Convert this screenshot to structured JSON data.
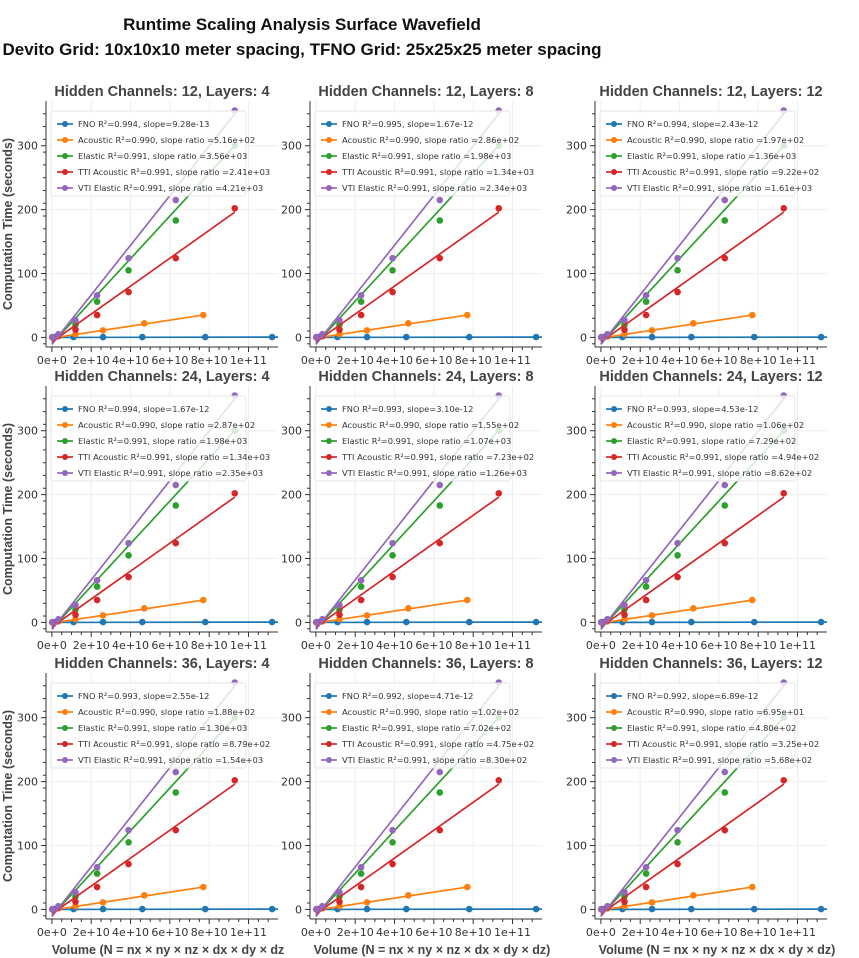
{
  "figure": {
    "title_line1": "Runtime Scaling Analysis Surface Wavefield",
    "title_line2": "Devito Grid: 10x10x10 meter spacing, TFNO Grid: 25x25x25 meter spacing",
    "ylabel": "Computation Time (seconds)",
    "xlabel_full": "Volume (N = nx × ny × nz × dx × dy × dz)",
    "xlabel_clipped": "Volume (N = nx × ny × nz × dx × dy × dz"
  },
  "colors": {
    "FNO": "#1f77b4",
    "Acoustic": "#ff7f0e",
    "Elastic": "#2ca02c",
    "TTI Acoustic": "#d62728",
    "VTI Elastic": "#9467bd"
  },
  "chart_data": {
    "type": "scatter",
    "xlim": [
      -3000000000,
      115000000000
    ],
    "ylim": [
      -15,
      370
    ],
    "xticks": [
      0,
      20000000000,
      40000000000,
      60000000000,
      80000000000,
      100000000000
    ],
    "xtick_labels": [
      "0e+0",
      "2e+10",
      "4e+10",
      "6e+10",
      "8e+10",
      "1e+11"
    ],
    "yticks": [
      0,
      100,
      200,
      300
    ],
    "ytick_labels": [
      "0",
      "100",
      "200",
      "300"
    ],
    "grid": true,
    "legend_position": "upper-left",
    "series_points": {
      "FNO": {
        "x": [
          1000000000,
          11000000000,
          26000000000,
          46000000000,
          78000000000,
          112000000000
        ],
        "y": [
          0.5,
          0.5,
          0.5,
          0.5,
          0.5,
          0.5
        ]
      },
      "Acoustic": {
        "x": [
          200000000,
          3300000000,
          12000000000,
          26000000000,
          47000000000,
          77000000000
        ],
        "y": [
          0.1,
          1.5,
          5,
          11,
          22,
          35
        ]
      },
      "Elastic": {
        "x": [
          200000000,
          3300000000,
          12000000000,
          23000000000,
          39000000000,
          63000000000,
          93000000000
        ],
        "y": [
          0.3,
          4,
          20,
          56,
          105,
          183,
          300
        ]
      },
      "TTI Acoustic": {
        "x": [
          200000000,
          3300000000,
          12000000000,
          23000000000,
          39000000000,
          63000000000,
          93000000000
        ],
        "y": [
          0.2,
          3,
          12,
          35,
          71,
          124,
          202
        ]
      },
      "VTI Elastic": {
        "x": [
          200000000,
          3300000000,
          12000000000,
          23000000000,
          39000000000,
          63000000000,
          93000000000
        ],
        "y": [
          0.3,
          5,
          27,
          66,
          124,
          215,
          355
        ]
      }
    },
    "series_fits": {
      "FNO": {
        "x": [
          0,
          115000000000
        ],
        "y": [
          0,
          0.5
        ]
      },
      "Acoustic": {
        "x": [
          0,
          77000000000
        ],
        "y": [
          -1,
          35
        ]
      },
      "Elastic": {
        "x": [
          0,
          93000000000
        ],
        "y": [
          -10,
          300
        ]
      },
      "TTI Acoustic": {
        "x": [
          0,
          93000000000
        ],
        "y": [
          -7,
          196
        ]
      },
      "VTI Elastic": {
        "x": [
          0,
          93000000000
        ],
        "y": [
          -11,
          350
        ]
      }
    },
    "panels": [
      {
        "title": "Hidden Channels: 12, Layers: 4",
        "legend": [
          "FNO R²=0.994, slope=9.28e-13",
          "Acoustic R²=0.990, slope ratio =5.16e+02",
          "Elastic R²=0.991, slope ratio =3.56e+03",
          "TTI Acoustic R²=0.991, slope ratio =2.41e+03",
          "VTI Elastic R²=0.991, slope ratio =4.21e+03"
        ]
      },
      {
        "title": "Hidden Channels: 12, Layers: 8",
        "legend": [
          "FNO R²=0.995, slope=1.67e-12",
          "Acoustic R²=0.990, slope ratio =2.86e+02",
          "Elastic R²=0.991, slope ratio =1.98e+03",
          "TTI Acoustic R²=0.991, slope ratio =1.34e+03",
          "VTI Elastic R²=0.991, slope ratio =2.34e+03"
        ]
      },
      {
        "title": "Hidden Channels: 12, Layers: 12",
        "legend": [
          "FNO R²=0.994, slope=2.43e-12",
          "Acoustic R²=0.990, slope ratio =1.97e+02",
          "Elastic R²=0.991, slope ratio =1.36e+03",
          "TTI Acoustic R²=0.991, slope ratio =9.22e+02",
          "VTI Elastic R²=0.991, slope ratio =1.61e+03"
        ]
      },
      {
        "title": "Hidden Channels: 24, Layers: 4",
        "legend": [
          "FNO R²=0.994, slope=1.67e-12",
          "Acoustic R²=0.990, slope ratio =2.87e+02",
          "Elastic R²=0.991, slope ratio =1.98e+03",
          "TTI Acoustic R²=0.991, slope ratio =1.34e+03",
          "VTI Elastic R²=0.991, slope ratio =2.35e+03"
        ]
      },
      {
        "title": "Hidden Channels: 24, Layers: 8",
        "legend": [
          "FNO R²=0.993, slope=3.10e-12",
          "Acoustic R²=0.990, slope ratio =1.55e+02",
          "Elastic R²=0.991, slope ratio =1.07e+03",
          "TTI Acoustic R²=0.991, slope ratio =7.23e+02",
          "VTI Elastic R²=0.991, slope ratio =1.26e+03"
        ]
      },
      {
        "title": "Hidden Channels: 24, Layers: 12",
        "legend": [
          "FNO R²=0.993, slope=4.53e-12",
          "Acoustic R²=0.990, slope ratio =1.06e+02",
          "Elastic R²=0.991, slope ratio =7.29e+02",
          "TTI Acoustic R²=0.991, slope ratio =4.94e+02",
          "VTI Elastic R²=0.991, slope ratio =8.62e+02"
        ]
      },
      {
        "title": "Hidden Channels: 36, Layers: 4",
        "legend": [
          "FNO R²=0.993, slope=2.55e-12",
          "Acoustic R²=0.990, slope ratio =1.88e+02",
          "Elastic R²=0.991, slope ratio =1.30e+03",
          "TTI Acoustic R²=0.991, slope ratio =8.79e+02",
          "VTI Elastic R²=0.991, slope ratio =1.54e+03"
        ]
      },
      {
        "title": "Hidden Channels: 36, Layers: 8",
        "legend": [
          "FNO R²=0.992, slope=4.71e-12",
          "Acoustic R²=0.990, slope ratio =1.02e+02",
          "Elastic R²=0.991, slope ratio =7.02e+02",
          "TTI Acoustic R²=0.991, slope ratio =4.75e+02",
          "VTI Elastic R²=0.991, slope ratio =8.30e+02"
        ]
      },
      {
        "title": "Hidden Channels: 36, Layers: 12",
        "legend": [
          "FNO R²=0.992, slope=6.89e-12",
          "Acoustic R²=0.990, slope ratio =6.95e+01",
          "Elastic R²=0.991, slope ratio =4.80e+02",
          "TTI Acoustic R²=0.991, slope ratio =3.25e+02",
          "VTI Elastic R²=0.991, slope ratio =5.68e+02"
        ]
      }
    ]
  }
}
